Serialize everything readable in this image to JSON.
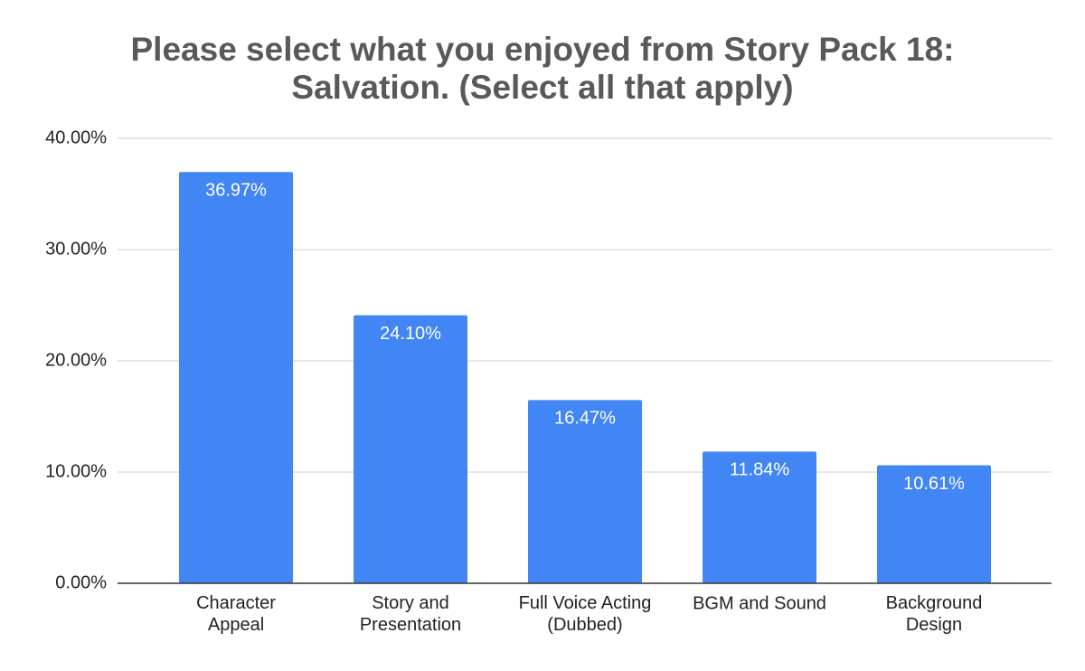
{
  "chart_data": {
    "type": "bar",
    "title": "Please select what you enjoyed from Story Pack 18:\nSalvation. (Select all that apply)",
    "categories": [
      "Character\nAppeal",
      "Story and\nPresentation",
      "Full Voice Acting\n(Dubbed)",
      "BGM and Sound",
      "Background\nDesign"
    ],
    "values": [
      36.97,
      24.1,
      16.47,
      11.84,
      10.61
    ],
    "value_labels": [
      "36.97%",
      "24.10%",
      "16.47%",
      "11.84%",
      "10.61%"
    ],
    "color": "#4285f4",
    "ylim": [
      0,
      40
    ],
    "yticks": [
      {
        "value": 0,
        "label": "0.00%"
      },
      {
        "value": 10,
        "label": "10.00%"
      },
      {
        "value": 20,
        "label": "20.00%"
      },
      {
        "value": 30,
        "label": "30.00%"
      },
      {
        "value": 40,
        "label": "40.00%"
      }
    ],
    "grid": true
  }
}
